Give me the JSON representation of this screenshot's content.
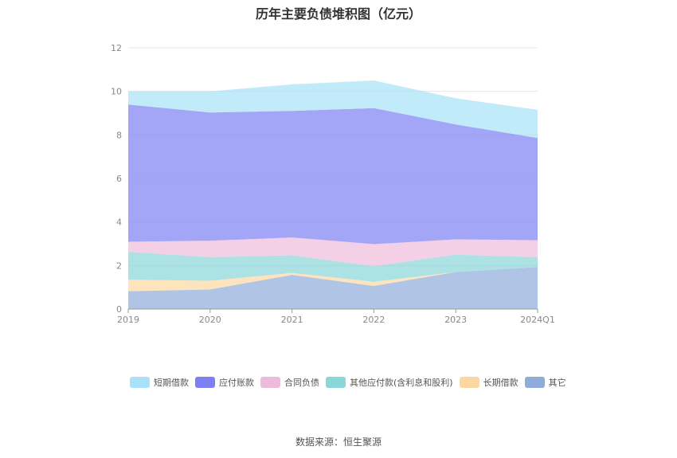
{
  "chart_data": {
    "type": "area",
    "stacked": true,
    "title": "历年主要负债堆积图（亿元）",
    "categories": [
      "2019",
      "2020",
      "2021",
      "2022",
      "2023",
      "2024Q1"
    ],
    "ylim": [
      0,
      12
    ],
    "yticks": [
      0,
      2,
      4,
      6,
      8,
      10,
      12
    ],
    "grid": true,
    "legend_position": "bottom",
    "series": [
      {
        "name": "其它",
        "color": "#8fadda",
        "values": [
          0.82,
          0.9,
          1.57,
          1.06,
          1.7,
          1.93
        ]
      },
      {
        "name": "长期借款",
        "color": "#fcd8a0",
        "values": [
          0.53,
          0.4,
          0.09,
          0.19,
          0.0,
          0.0
        ]
      },
      {
        "name": "其他应付款(含利息和股利)",
        "color": "#8ad6d8",
        "values": [
          1.28,
          1.08,
          0.81,
          0.72,
          0.8,
          0.45
        ]
      },
      {
        "name": "合同负债",
        "color": "#eebcda",
        "values": [
          0.46,
          0.76,
          0.82,
          1.01,
          0.7,
          0.78
        ]
      },
      {
        "name": "应付账款",
        "color": "#7c80f2",
        "values": [
          6.3,
          5.89,
          5.81,
          6.25,
          5.28,
          4.7
        ]
      },
      {
        "name": "短期借款",
        "color": "#a8e2f8",
        "values": [
          0.61,
          0.97,
          1.22,
          1.27,
          1.2,
          1.29
        ]
      }
    ]
  },
  "legend_order": [
    5,
    4,
    3,
    2,
    1,
    0
  ],
  "source": "数据来源：恒生聚源"
}
